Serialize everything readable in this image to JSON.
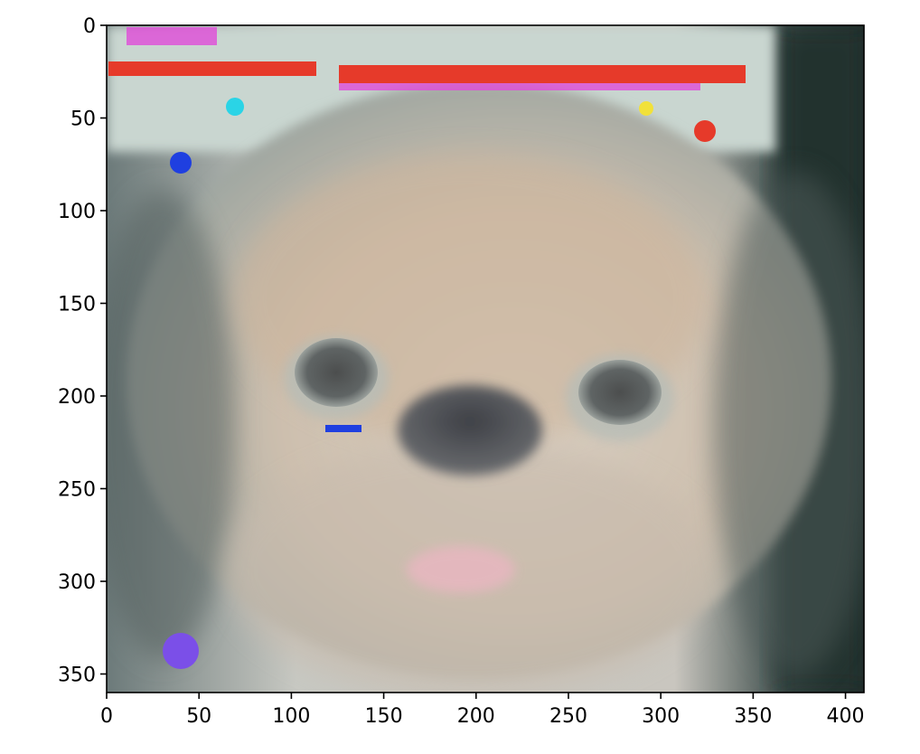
{
  "figure": {
    "image": {
      "kind": "image-panel",
      "depiction": "dog-face-photo",
      "colors": {
        "fur_light": "#d8d2c6",
        "fur_warm": "#c9ad90",
        "fur_shadow": "#6a6e6c",
        "background_dark": "#1f2b28",
        "nose": "#4b4d53",
        "tongue": "#e8b8be",
        "artifact_red": "#e63a2a",
        "artifact_magenta": "#e04bd8",
        "artifact_blue": "#1f3fe0",
        "artifact_cyan": "#2ad4e6",
        "artifact_yellow": "#f1e13a"
      }
    },
    "x_axis": {
      "range": [
        0,
        410
      ],
      "ticks": [
        0,
        50,
        100,
        150,
        200,
        250,
        300,
        350,
        400
      ],
      "tick_labels": [
        "0",
        "50",
        "100",
        "150",
        "200",
        "250",
        "300",
        "350",
        "400"
      ]
    },
    "y_axis": {
      "range": [
        0,
        360
      ],
      "inverted": true,
      "ticks": [
        0,
        50,
        100,
        150,
        200,
        250,
        300,
        350
      ],
      "tick_labels": [
        "0",
        "50",
        "100",
        "150",
        "200",
        "250",
        "300",
        "350"
      ]
    }
  }
}
